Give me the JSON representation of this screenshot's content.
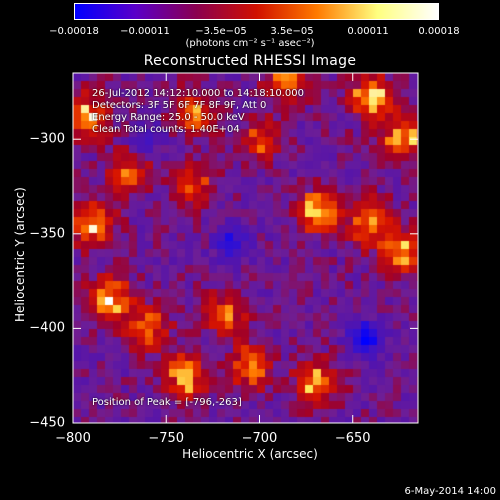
{
  "chart_data": {
    "type": "heatmap",
    "title": "Reconstructed RHESSI Image",
    "xlabel": "Heliocentric X (arcsec)",
    "ylabel": "Heliocentric Y (arcsec)",
    "xlim": [
      -800,
      -615
    ],
    "ylim": [
      -450,
      -265
    ],
    "x_ticks": [
      "−800",
      "−750",
      "−700",
      "−650"
    ],
    "x_tick_values": [
      -800,
      -750,
      -700,
      -650
    ],
    "y_ticks": [
      "−300",
      "−350",
      "−400",
      "−450"
    ],
    "y_tick_values": [
      -300,
      -350,
      -400,
      -450
    ],
    "colorbar": {
      "ticks": [
        "−0.00018",
        "−0.00011",
        "−3.5e−05",
        "3.5e−05",
        "0.00011",
        "0.00018"
      ],
      "tick_values": [
        -0.00018,
        -0.00011,
        -3.5e-05,
        3.5e-05,
        0.00011,
        0.00018
      ],
      "units_label": "(photons cm⁻² s⁻¹ asec⁻²)",
      "colors": [
        "#0000ff",
        "#5a00c8",
        "#8a0050",
        "#d01000",
        "#ff7a00",
        "#ffff80",
        "#ffffff"
      ]
    },
    "annotations": [
      "26-Jul-2012 14:12:10.000 to 14:18:10.000",
      "Detectors: 3F 5F 6F 7F 8F 9F, Att 0",
      "Energy Range: 25.0 - 50.0 keV",
      "Clean    Total counts: 1.40E+04"
    ],
    "peak_label": "Position of Peak = [-796,-263]",
    "hot_regions": [
      {
        "x": -792,
        "y": -288,
        "level": 0.85
      },
      {
        "x": -735,
        "y": -285,
        "level": 0.7
      },
      {
        "x": -685,
        "y": -268,
        "level": 0.75
      },
      {
        "x": -640,
        "y": -278,
        "level": 0.9
      },
      {
        "x": -623,
        "y": -300,
        "level": 0.8
      },
      {
        "x": -790,
        "y": -345,
        "level": 0.85
      },
      {
        "x": -668,
        "y": -338,
        "level": 0.9
      },
      {
        "x": -640,
        "y": -345,
        "level": 0.85
      },
      {
        "x": -623,
        "y": -360,
        "level": 0.75
      },
      {
        "x": -780,
        "y": -385,
        "level": 0.9
      },
      {
        "x": -760,
        "y": -400,
        "level": 0.7
      },
      {
        "x": -718,
        "y": -392,
        "level": 0.6
      },
      {
        "x": -740,
        "y": -425,
        "level": 0.85
      },
      {
        "x": -705,
        "y": -420,
        "level": 0.7
      },
      {
        "x": -670,
        "y": -428,
        "level": 0.8
      },
      {
        "x": -700,
        "y": -300,
        "level": 0.55
      },
      {
        "x": -770,
        "y": -318,
        "level": 0.55
      },
      {
        "x": -735,
        "y": -325,
        "level": 0.5
      }
    ],
    "cold_regions": [
      {
        "x": -643,
        "y": -405,
        "level": 1.0
      },
      {
        "x": -715,
        "y": -355,
        "level": 0.6
      },
      {
        "x": -760,
        "y": -300,
        "level": 0.4
      }
    ]
  },
  "footer_date": "6-May-2014 14:00"
}
